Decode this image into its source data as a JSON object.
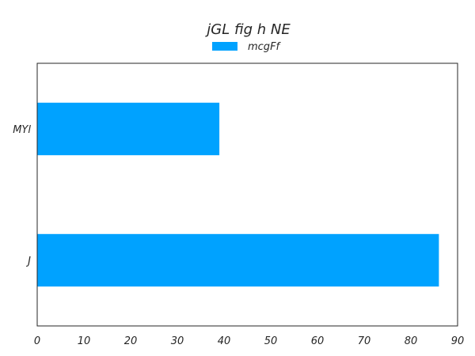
{
  "chart_data": {
    "type": "bar",
    "orientation": "horizontal",
    "title": "jGL fig  h  NE",
    "categories": [
      "MYl",
      "J"
    ],
    "series": [
      {
        "name": "mcgFf",
        "values": [
          39,
          86
        ],
        "color": "#00a2ff"
      }
    ],
    "xlim": [
      0,
      90
    ],
    "xticks": [
      0,
      10,
      20,
      30,
      40,
      50,
      60,
      70,
      80,
      90
    ],
    "xlabel": "",
    "ylabel": "",
    "grid": false,
    "legend": "top-center"
  }
}
